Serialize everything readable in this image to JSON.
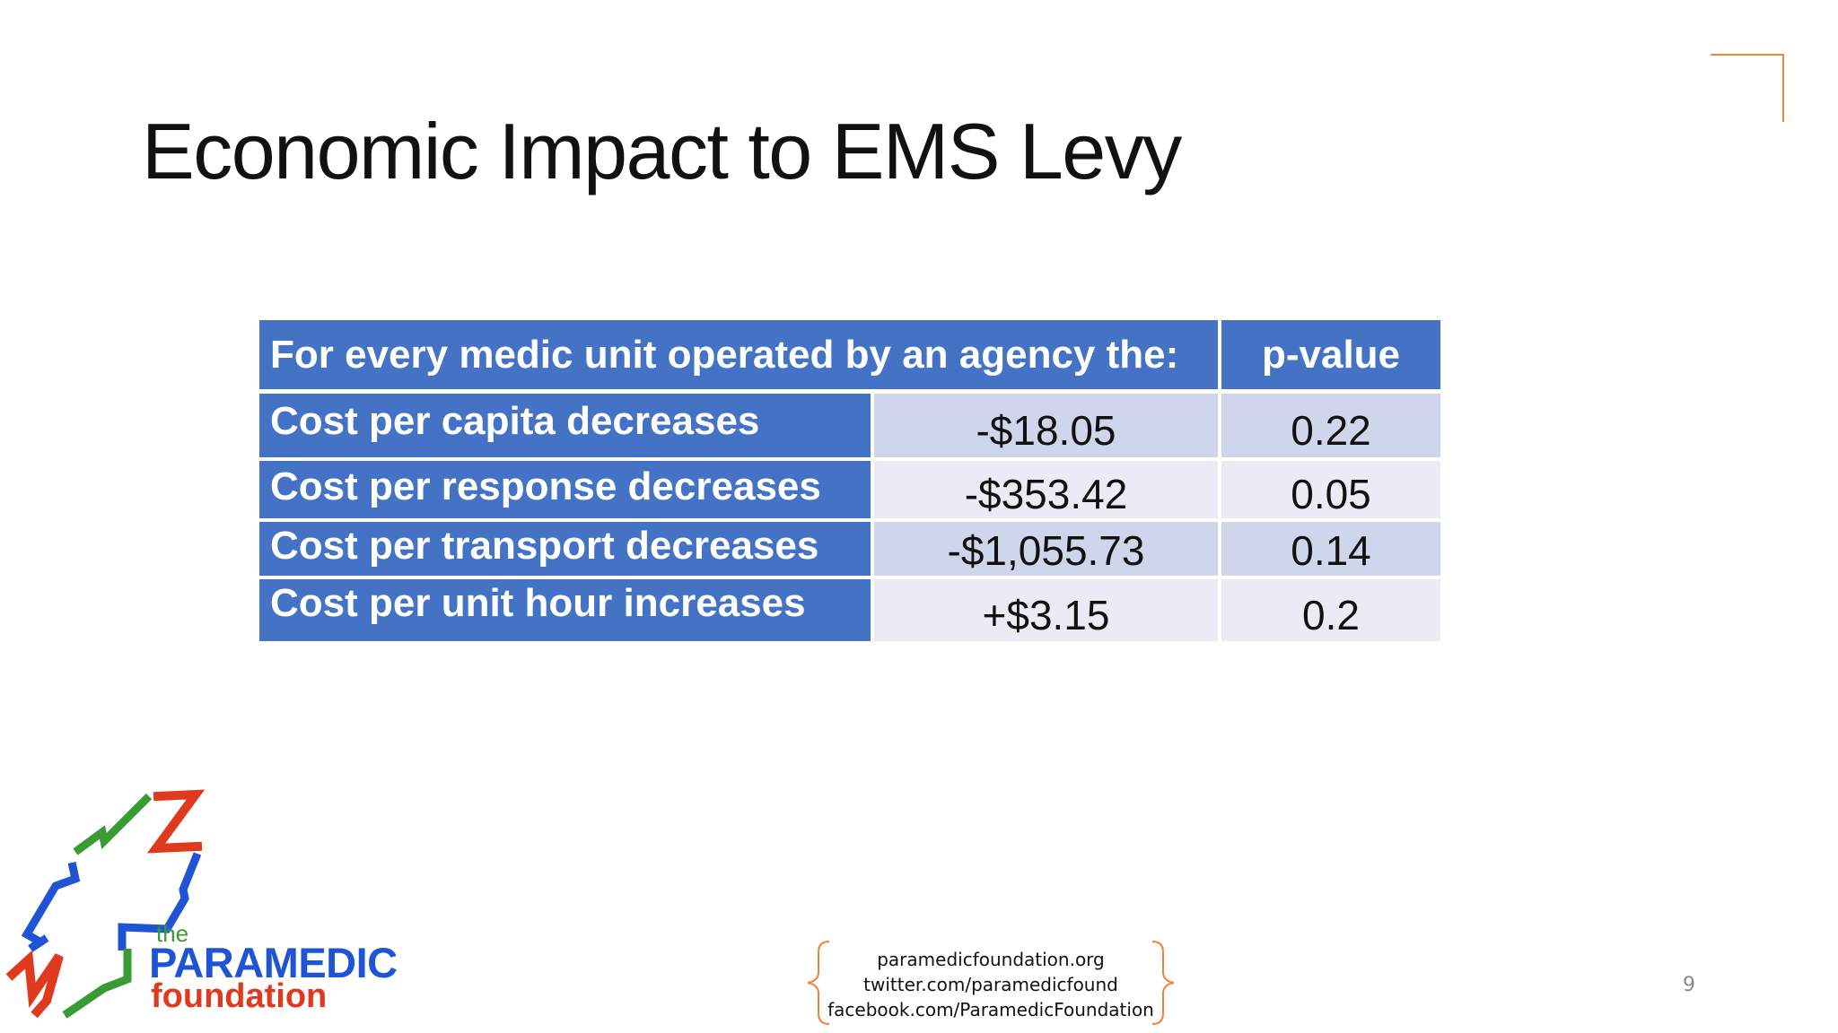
{
  "slide": {
    "title": "Economic Impact to EMS Levy",
    "page_number": "9"
  },
  "table": {
    "header": {
      "label": "For every medic unit operated by an agency the:",
      "pvalue": "p-value"
    },
    "rows": [
      {
        "label": "Cost per capita decreases",
        "value": "-$18.05",
        "pvalue": "0.22"
      },
      {
        "label": "Cost per response decreases",
        "value": "-$353.42",
        "pvalue": "0.05"
      },
      {
        "label": "Cost per transport decreases",
        "value": "-$1,055.73",
        "pvalue": "0.14"
      },
      {
        "label": "Cost per unit hour increases",
        "value": "+$3.15",
        "pvalue": "0.2"
      }
    ]
  },
  "logo": {
    "the": "the",
    "name": "PARAMEDIC",
    "sub": "foundation"
  },
  "contact": {
    "website": "paramedicfoundation.org",
    "twitter": "twitter.com/paramedicfound",
    "facebook": "facebook.com/ParamedicFoundation"
  },
  "colors": {
    "header_blue": "#4472c4",
    "row_shade_dark": "#cfd5ea",
    "row_shade_light": "#e9ebf5",
    "accent_orange": "#e8873a"
  }
}
